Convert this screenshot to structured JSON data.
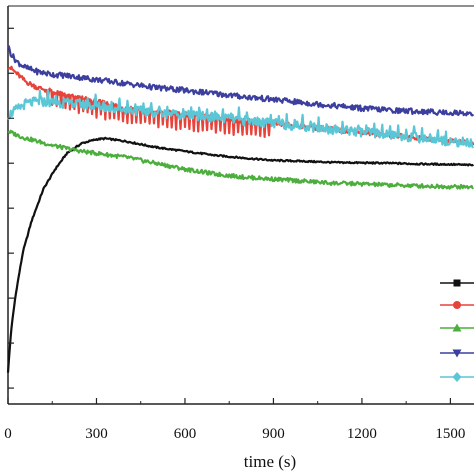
{
  "chart_data": {
    "type": "line",
    "xlabel": "time (s)",
    "ylabel": "",
    "title": "",
    "xlim": [
      0,
      1580
    ],
    "ylim": [
      0,
      1
    ],
    "x_ticks": [
      0,
      300,
      600,
      900,
      1200,
      1500
    ],
    "x_tick_labels": [
      "0",
      "300",
      "600",
      "900",
      "1200",
      "1500"
    ],
    "y_ticks": [
      0.04,
      0.153,
      0.266,
      0.379,
      0.492,
      0.605,
      0.718,
      0.831,
      0.944
    ],
    "grid": false,
    "legend_position": "right",
    "series": [
      {
        "color": "#111111",
        "marker": "square",
        "x": [
          0,
          10,
          25,
          50,
          80,
          120,
          160,
          200,
          250,
          300,
          330,
          400,
          500,
          600,
          700,
          800,
          900,
          1000,
          1100,
          1200,
          1300,
          1400,
          1500,
          1580
        ],
        "y": [
          0.08,
          0.18,
          0.27,
          0.38,
          0.46,
          0.54,
          0.59,
          0.63,
          0.655,
          0.665,
          0.667,
          0.66,
          0.645,
          0.635,
          0.625,
          0.618,
          0.612,
          0.61,
          0.607,
          0.606,
          0.605,
          0.603,
          0.602,
          0.6
        ]
      },
      {
        "color": "#e8433a",
        "marker": "circle",
        "x": [
          0,
          30,
          60,
          100,
          150,
          200,
          300,
          400,
          500,
          600,
          700,
          800,
          900,
          1000,
          1100,
          1200,
          1300,
          1400,
          1500,
          1580
        ],
        "y": [
          0.85,
          0.83,
          0.81,
          0.795,
          0.785,
          0.775,
          0.76,
          0.745,
          0.735,
          0.728,
          0.72,
          0.712,
          0.705,
          0.698,
          0.69,
          0.683,
          0.675,
          0.668,
          0.66,
          0.655
        ]
      },
      {
        "color": "#4cae3c",
        "marker": "triangle-up",
        "x": [
          0,
          50,
          100,
          150,
          200,
          250,
          300,
          400,
          500,
          600,
          700,
          800,
          900,
          1000,
          1100,
          1200,
          1300,
          1400,
          1500,
          1580
        ],
        "y": [
          0.685,
          0.67,
          0.66,
          0.65,
          0.642,
          0.635,
          0.63,
          0.62,
          0.605,
          0.59,
          0.578,
          0.57,
          0.565,
          0.56,
          0.555,
          0.553,
          0.55,
          0.548,
          0.546,
          0.545
        ]
      },
      {
        "color": "#3c3f9e",
        "marker": "triangle-down",
        "x": [
          0,
          10,
          30,
          60,
          100,
          150,
          200,
          250,
          300,
          400,
          500,
          600,
          700,
          800,
          900,
          1000,
          1100,
          1200,
          1300,
          1400,
          1500,
          1580
        ],
        "y": [
          0.9,
          0.88,
          0.86,
          0.845,
          0.835,
          0.828,
          0.825,
          0.82,
          0.815,
          0.805,
          0.795,
          0.788,
          0.78,
          0.772,
          0.765,
          0.757,
          0.75,
          0.743,
          0.738,
          0.735,
          0.732,
          0.73
        ]
      },
      {
        "color": "#5bc6d6",
        "marker": "diamond",
        "x": [
          0,
          30,
          60,
          100,
          150,
          200,
          250,
          300,
          400,
          500,
          600,
          700,
          800,
          900,
          1000,
          1100,
          1200,
          1300,
          1400,
          1500,
          1580
        ],
        "y": [
          0.725,
          0.74,
          0.755,
          0.76,
          0.758,
          0.755,
          0.752,
          0.748,
          0.74,
          0.732,
          0.726,
          0.72,
          0.712,
          0.705,
          0.698,
          0.69,
          0.683,
          0.676,
          0.668,
          0.66,
          0.655
        ]
      }
    ]
  }
}
